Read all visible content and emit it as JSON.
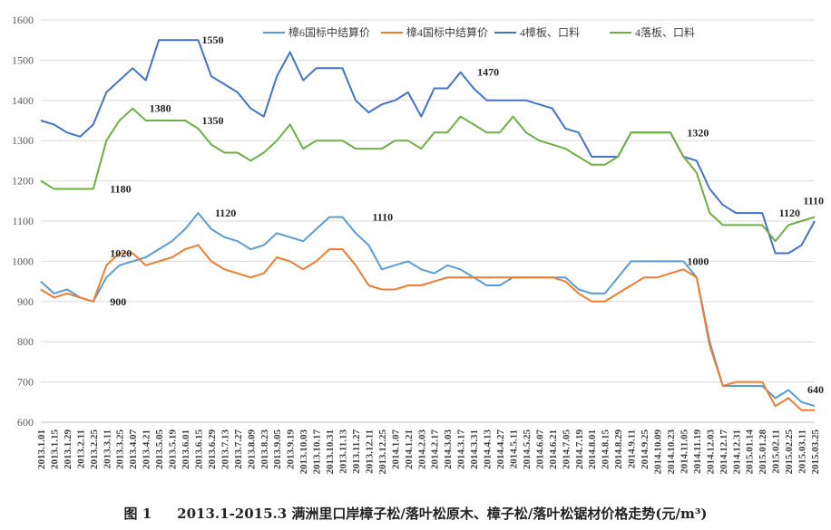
{
  "caption": {
    "figure_label": "图 1",
    "title": "2013.1-2015.3 满洲里口岸樟子松/落叶松原木、樟子松/落叶松锯材价格走势(元/m³)"
  },
  "chart_data": {
    "type": "line",
    "title": "2013.1-2015.3 满洲里口岸樟子松/落叶松原木、樟子松/落叶松锯材价格走势(元/m³)",
    "xlabel": "",
    "ylabel": "",
    "ylim": [
      600,
      1600
    ],
    "yticks": [
      600,
      700,
      800,
      900,
      1000,
      1100,
      1200,
      1300,
      1400,
      1500,
      1600
    ],
    "grid": true,
    "legend_position": "top",
    "x_tick_labels": [
      "2013.1.01",
      "2013.1.15",
      "2013.1.29",
      "2013.2.11",
      "2013.2.25",
      "2013.3.11",
      "2013.3.25",
      "2013.4.07",
      "2013.4.21",
      "2013.5.05",
      "2013.5.19",
      "2013.6.01",
      "2013.6.15",
      "2013.6.29",
      "2013.7.13",
      "2013.7.27",
      "2013.8.09",
      "2013.8.23",
      "2013.9.05",
      "2013.9.19",
      "2013.10.03",
      "2013.10.17",
      "2013.10.31",
      "2013.11.13",
      "2013.11.27",
      "2013.12.11",
      "2013.12.25",
      "2014.1.07",
      "2014.1.21",
      "2014.2.03",
      "2014.2.17",
      "2014.3.03",
      "2014.3.17",
      "2014.3.31",
      "2014.4.13",
      "2014.4.27",
      "2014.5.11",
      "2014.5.25",
      "2014.6.07",
      "2014.6.21",
      "2014.7.05",
      "2014.7.19",
      "2014.8.01",
      "2014.8.15",
      "2014.8.29",
      "2014.9.11",
      "2014.9.25",
      "2014.10.09",
      "2014.10.23",
      "2014.11.05",
      "2014.11.19",
      "2014.12.03",
      "2014.12.17",
      "2014.12.31",
      "2015.01.14",
      "2015.01.28",
      "2015.02.11",
      "2015.02.25",
      "2015.03.11",
      "2015.03.25"
    ],
    "series": [
      {
        "name": "樟6国标中结算价",
        "color": "#5b9bd5",
        "points": [
          [
            0,
            950
          ],
          [
            1,
            920
          ],
          [
            2,
            930
          ],
          [
            3,
            910
          ],
          [
            4,
            900
          ],
          [
            5,
            960
          ],
          [
            6,
            990
          ],
          [
            7,
            1000
          ],
          [
            8,
            1010
          ],
          [
            9,
            1030
          ],
          [
            10,
            1050
          ],
          [
            11,
            1080
          ],
          [
            12,
            1120
          ],
          [
            13,
            1080
          ],
          [
            14,
            1060
          ],
          [
            15,
            1050
          ],
          [
            16,
            1030
          ],
          [
            17,
            1040
          ],
          [
            18,
            1070
          ],
          [
            19,
            1060
          ],
          [
            20,
            1050
          ],
          [
            21,
            1080
          ],
          [
            22,
            1110
          ],
          [
            23,
            1110
          ],
          [
            24,
            1070
          ],
          [
            25,
            1040
          ],
          [
            26,
            980
          ],
          [
            27,
            990
          ],
          [
            28,
            1000
          ],
          [
            29,
            980
          ],
          [
            30,
            970
          ],
          [
            31,
            990
          ],
          [
            32,
            980
          ],
          [
            33,
            960
          ],
          [
            34,
            940
          ],
          [
            35,
            940
          ],
          [
            36,
            960
          ],
          [
            37,
            960
          ],
          [
            38,
            960
          ],
          [
            39,
            960
          ],
          [
            40,
            960
          ],
          [
            41,
            930
          ],
          [
            42,
            920
          ],
          [
            43,
            920
          ],
          [
            44,
            960
          ],
          [
            45,
            1000
          ],
          [
            46,
            1000
          ],
          [
            47,
            1000
          ],
          [
            48,
            1000
          ],
          [
            49,
            1000
          ],
          [
            50,
            960
          ],
          [
            51,
            800
          ],
          [
            52,
            690
          ],
          [
            53,
            690
          ],
          [
            54,
            690
          ],
          [
            55,
            690
          ],
          [
            56,
            660
          ],
          [
            57,
            680
          ],
          [
            58,
            650
          ],
          [
            59,
            640
          ]
        ]
      },
      {
        "name": "樟4国标中结算价",
        "color": "#ed7d31",
        "points": [
          [
            0,
            930
          ],
          [
            1,
            910
          ],
          [
            2,
            920
          ],
          [
            3,
            910
          ],
          [
            4,
            900
          ],
          [
            5,
            990
          ],
          [
            6,
            1020
          ],
          [
            7,
            1020
          ],
          [
            8,
            990
          ],
          [
            9,
            1000
          ],
          [
            10,
            1010
          ],
          [
            11,
            1030
          ],
          [
            12,
            1040
          ],
          [
            13,
            1000
          ],
          [
            14,
            980
          ],
          [
            15,
            970
          ],
          [
            16,
            960
          ],
          [
            17,
            970
          ],
          [
            18,
            1010
          ],
          [
            19,
            1000
          ],
          [
            20,
            980
          ],
          [
            21,
            1000
          ],
          [
            22,
            1030
          ],
          [
            23,
            1030
          ],
          [
            24,
            990
          ],
          [
            25,
            940
          ],
          [
            26,
            930
          ],
          [
            27,
            930
          ],
          [
            28,
            940
          ],
          [
            29,
            940
          ],
          [
            30,
            950
          ],
          [
            31,
            960
          ],
          [
            32,
            960
          ],
          [
            33,
            960
          ],
          [
            34,
            960
          ],
          [
            35,
            960
          ],
          [
            36,
            960
          ],
          [
            37,
            960
          ],
          [
            38,
            960
          ],
          [
            39,
            960
          ],
          [
            40,
            950
          ],
          [
            41,
            920
          ],
          [
            42,
            900
          ],
          [
            43,
            900
          ],
          [
            44,
            920
          ],
          [
            45,
            940
          ],
          [
            46,
            960
          ],
          [
            47,
            960
          ],
          [
            48,
            970
          ],
          [
            49,
            980
          ],
          [
            50,
            960
          ],
          [
            51,
            790
          ],
          [
            52,
            690
          ],
          [
            53,
            700
          ],
          [
            54,
            700
          ],
          [
            55,
            700
          ],
          [
            56,
            640
          ],
          [
            57,
            660
          ],
          [
            58,
            630
          ],
          [
            59,
            630
          ]
        ]
      },
      {
        "name": "4樟板、口料",
        "color": "#4472c4",
        "points": [
          [
            0,
            1350
          ],
          [
            1,
            1340
          ],
          [
            2,
            1320
          ],
          [
            3,
            1310
          ],
          [
            4,
            1340
          ],
          [
            5,
            1420
          ],
          [
            6,
            1450
          ],
          [
            7,
            1480
          ],
          [
            8,
            1450
          ],
          [
            9,
            1550
          ],
          [
            10,
            1550
          ],
          [
            11,
            1550
          ],
          [
            12,
            1550
          ],
          [
            13,
            1460
          ],
          [
            14,
            1440
          ],
          [
            15,
            1420
          ],
          [
            16,
            1380
          ],
          [
            17,
            1360
          ],
          [
            18,
            1460
          ],
          [
            19,
            1520
          ],
          [
            20,
            1450
          ],
          [
            21,
            1480
          ],
          [
            22,
            1480
          ],
          [
            23,
            1480
          ],
          [
            24,
            1400
          ],
          [
            25,
            1370
          ],
          [
            26,
            1390
          ],
          [
            27,
            1400
          ],
          [
            28,
            1420
          ],
          [
            29,
            1360
          ],
          [
            30,
            1430
          ],
          [
            31,
            1430
          ],
          [
            32,
            1470
          ],
          [
            33,
            1430
          ],
          [
            34,
            1400
          ],
          [
            35,
            1400
          ],
          [
            36,
            1400
          ],
          [
            37,
            1400
          ],
          [
            38,
            1390
          ],
          [
            39,
            1380
          ],
          [
            40,
            1330
          ],
          [
            41,
            1320
          ],
          [
            42,
            1260
          ],
          [
            43,
            1260
          ],
          [
            44,
            1260
          ],
          [
            45,
            1320
          ],
          [
            46,
            1320
          ],
          [
            47,
            1320
          ],
          [
            48,
            1320
          ],
          [
            49,
            1260
          ],
          [
            50,
            1250
          ],
          [
            51,
            1180
          ],
          [
            52,
            1140
          ],
          [
            53,
            1120
          ],
          [
            54,
            1120
          ],
          [
            55,
            1120
          ],
          [
            56,
            1020
          ],
          [
            57,
            1020
          ],
          [
            58,
            1040
          ],
          [
            59,
            1100
          ]
        ]
      },
      {
        "name": "4落板、口料",
        "color": "#70ad47",
        "points": [
          [
            0,
            1200
          ],
          [
            1,
            1180
          ],
          [
            2,
            1180
          ],
          [
            3,
            1180
          ],
          [
            4,
            1180
          ],
          [
            5,
            1300
          ],
          [
            6,
            1350
          ],
          [
            7,
            1380
          ],
          [
            8,
            1350
          ],
          [
            9,
            1350
          ],
          [
            10,
            1350
          ],
          [
            11,
            1350
          ],
          [
            12,
            1330
          ],
          [
            13,
            1290
          ],
          [
            14,
            1270
          ],
          [
            15,
            1270
          ],
          [
            16,
            1250
          ],
          [
            17,
            1270
          ],
          [
            18,
            1300
          ],
          [
            19,
            1340
          ],
          [
            20,
            1280
          ],
          [
            21,
            1300
          ],
          [
            22,
            1300
          ],
          [
            23,
            1300
          ],
          [
            24,
            1280
          ],
          [
            25,
            1280
          ],
          [
            26,
            1280
          ],
          [
            27,
            1300
          ],
          [
            28,
            1300
          ],
          [
            29,
            1280
          ],
          [
            30,
            1320
          ],
          [
            31,
            1320
          ],
          [
            32,
            1360
          ],
          [
            33,
            1340
          ],
          [
            34,
            1320
          ],
          [
            35,
            1320
          ],
          [
            36,
            1360
          ],
          [
            37,
            1320
          ],
          [
            38,
            1300
          ],
          [
            39,
            1290
          ],
          [
            40,
            1280
          ],
          [
            41,
            1260
          ],
          [
            42,
            1240
          ],
          [
            43,
            1240
          ],
          [
            44,
            1260
          ],
          [
            45,
            1320
          ],
          [
            46,
            1320
          ],
          [
            47,
            1320
          ],
          [
            48,
            1320
          ],
          [
            49,
            1260
          ],
          [
            50,
            1220
          ],
          [
            51,
            1120
          ],
          [
            52,
            1090
          ],
          [
            53,
            1090
          ],
          [
            54,
            1090
          ],
          [
            55,
            1090
          ],
          [
            56,
            1050
          ],
          [
            57,
            1090
          ],
          [
            58,
            1100
          ],
          [
            59,
            1110
          ]
        ]
      }
    ],
    "annotations": [
      {
        "text": "900",
        "x": 5,
        "y": 900
      },
      {
        "text": "1020",
        "x": 5,
        "y": 1020
      },
      {
        "text": "1180",
        "x": 5,
        "y": 1180
      },
      {
        "text": "1380",
        "x": 8,
        "y": 1380
      },
      {
        "text": "1550",
        "x": 12,
        "y": 1550
      },
      {
        "text": "1350",
        "x": 12,
        "y": 1350
      },
      {
        "text": "1120",
        "x": 13,
        "y": 1120
      },
      {
        "text": "1110",
        "x": 25,
        "y": 1110
      },
      {
        "text": "1470",
        "x": 33,
        "y": 1470
      },
      {
        "text": "1320",
        "x": 49,
        "y": 1320
      },
      {
        "text": "1000",
        "x": 49,
        "y": 1000
      },
      {
        "text": "1120",
        "x": 56,
        "y": 1120
      },
      {
        "text": "1110",
        "x": 59,
        "y": 1110
      },
      {
        "text": "640",
        "x": 59,
        "y": 640
      }
    ]
  }
}
